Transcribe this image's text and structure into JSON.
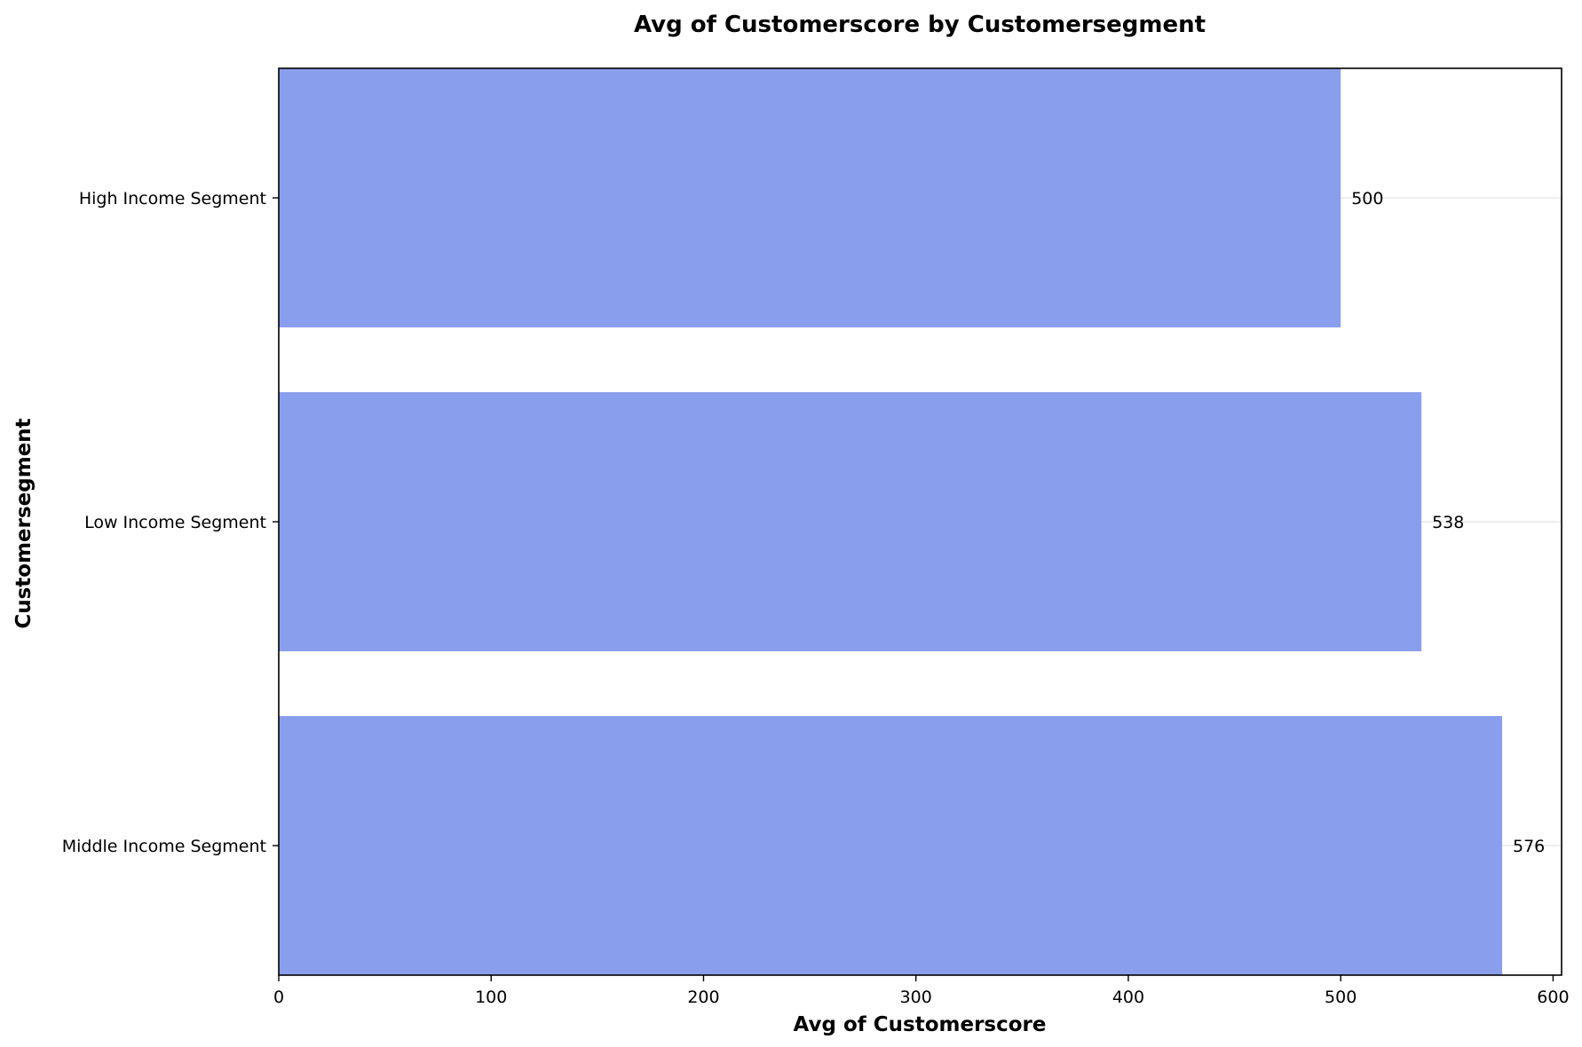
{
  "chart_data": {
    "type": "bar",
    "orientation": "horizontal",
    "title": "Avg of Customerscore by Customersegment",
    "xlabel": "Avg of Customerscore",
    "ylabel": "Customersegment",
    "categories": [
      "High Income Segment",
      "Low Income Segment",
      "Middle Income Segment"
    ],
    "values": [
      500,
      538,
      576
    ],
    "data_labels": [
      "500",
      "538",
      "576"
    ],
    "xlim": [
      0,
      604
    ],
    "xticks": [
      0,
      100,
      200,
      300,
      400,
      500,
      600
    ],
    "bar_color": "#8499ed",
    "grid": "horizontal-light",
    "legend": "none"
  }
}
